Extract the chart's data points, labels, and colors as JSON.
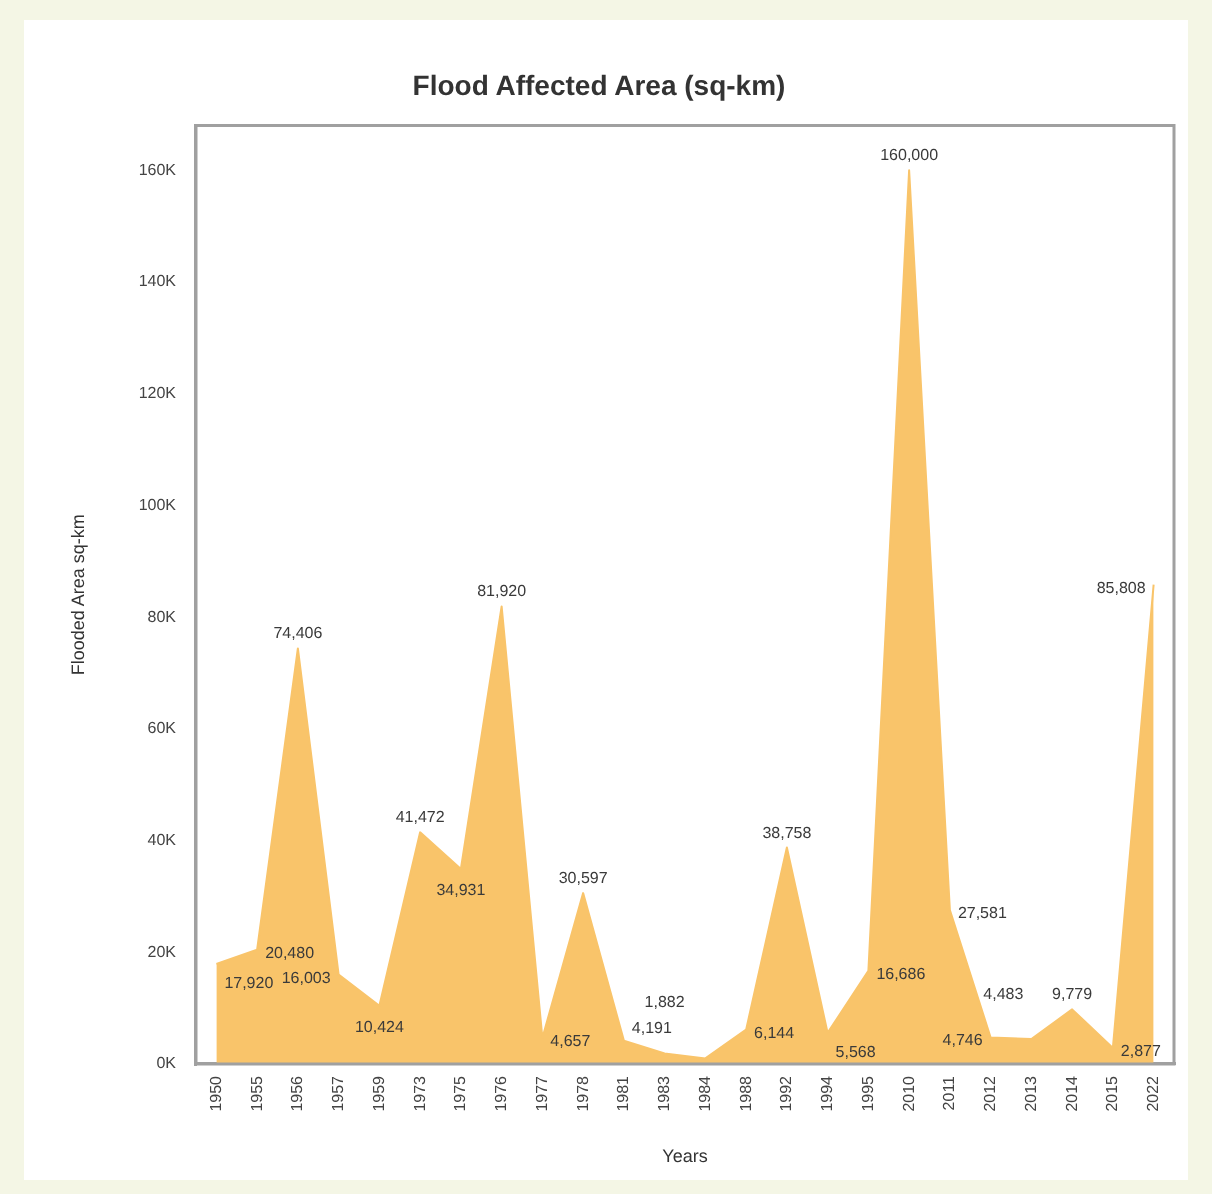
{
  "chart_data": {
    "type": "area",
    "title": "Flood Affected Area (sq-km)",
    "xlabel": "Years",
    "ylabel": "Flooded Area sq-km",
    "categories": [
      "1950",
      "1955",
      "1956",
      "1957",
      "1959",
      "1973",
      "1975",
      "1976",
      "1977",
      "1978",
      "1981",
      "1983",
      "1984",
      "1988",
      "1992",
      "1994",
      "1995",
      "2010",
      "2011",
      "2012",
      "2013",
      "2014",
      "2015",
      "2022"
    ],
    "values": [
      17920,
      20480,
      74406,
      16003,
      10424,
      41472,
      34931,
      81920,
      4657,
      30597,
      4191,
      1882,
      1000,
      6144,
      38758,
      5568,
      16686,
      160000,
      27581,
      4746,
      4483,
      9779,
      2877,
      85808
    ],
    "value_labels": [
      "17,920",
      "20,480",
      "74,406",
      "16,003",
      "10,424",
      "41,472",
      "34,931",
      "81,920",
      "4,657",
      "30,597",
      "4,191",
      "1,882",
      null,
      "6,144",
      "38,758",
      "5,568",
      "16,686",
      "160,000",
      "27,581",
      "4,746",
      "4,483",
      "9,779",
      "2,877",
      "85,808"
    ],
    "color": "#f9c46a",
    "ylim": [
      0,
      168000
    ],
    "yticks": [
      {
        "value": 0,
        "label": "0K"
      },
      {
        "value": 20000,
        "label": "20K"
      },
      {
        "value": 40000,
        "label": "40K"
      },
      {
        "value": 60000,
        "label": "60K"
      },
      {
        "value": 80000,
        "label": "80K"
      },
      {
        "value": 100000,
        "label": "100K"
      },
      {
        "value": 120000,
        "label": "120K"
      },
      {
        "value": 140000,
        "label": "140K"
      },
      {
        "value": 160000,
        "label": "160K"
      }
    ]
  }
}
